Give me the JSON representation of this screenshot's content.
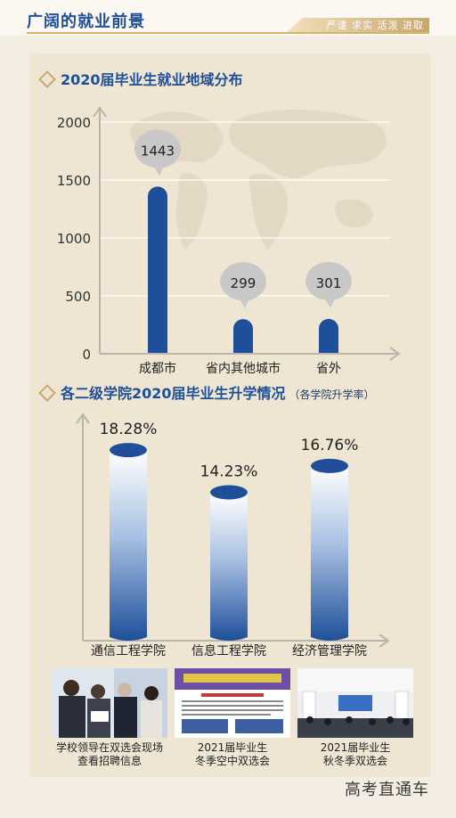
{
  "header": {
    "title": "广阔的就业前景",
    "slogan": "严谨 求实 活泼 进取"
  },
  "colors": {
    "primary": "#1f4f99",
    "accent": "#c9a66a",
    "bubble": "#c8c8c8"
  },
  "chart_data": [
    {
      "type": "bar",
      "title": "2020届毕业生就业地域分布",
      "categories": [
        "成都市",
        "省内其他城市",
        "省外"
      ],
      "values": [
        1443,
        299,
        301
      ],
      "data_labels": [
        "1443",
        "299",
        "301"
      ],
      "yticks": [
        "0",
        "500",
        "1000",
        "1500",
        "2000"
      ],
      "ylim": [
        0,
        2000
      ],
      "grid": true,
      "background_icon": "world-map-icon"
    },
    {
      "type": "bar",
      "title": "各二级学院2020届毕业生升学情况",
      "subtitle": "（各学院升学率）",
      "categories": [
        "通信工程学院",
        "信息工程学院",
        "经济管理学院"
      ],
      "values": [
        18.28,
        14.23,
        16.76
      ],
      "data_labels": [
        "18.28%",
        "14.23%",
        "16.76%"
      ],
      "ylim": [
        0,
        20
      ]
    }
  ],
  "photos": [
    {
      "caption_line1": "学校领导在双选会现场",
      "caption_line2": "查看招聘信息",
      "icon": "people-photo-icon"
    },
    {
      "caption_line1": "2021届毕业生",
      "caption_line2": "冬季空中双选会",
      "icon": "webpage-screenshot-icon"
    },
    {
      "caption_line1": "2021届毕业生",
      "caption_line2": "秋冬季双选会",
      "icon": "venue-photo-icon"
    }
  ],
  "watermark": "高考直通车"
}
